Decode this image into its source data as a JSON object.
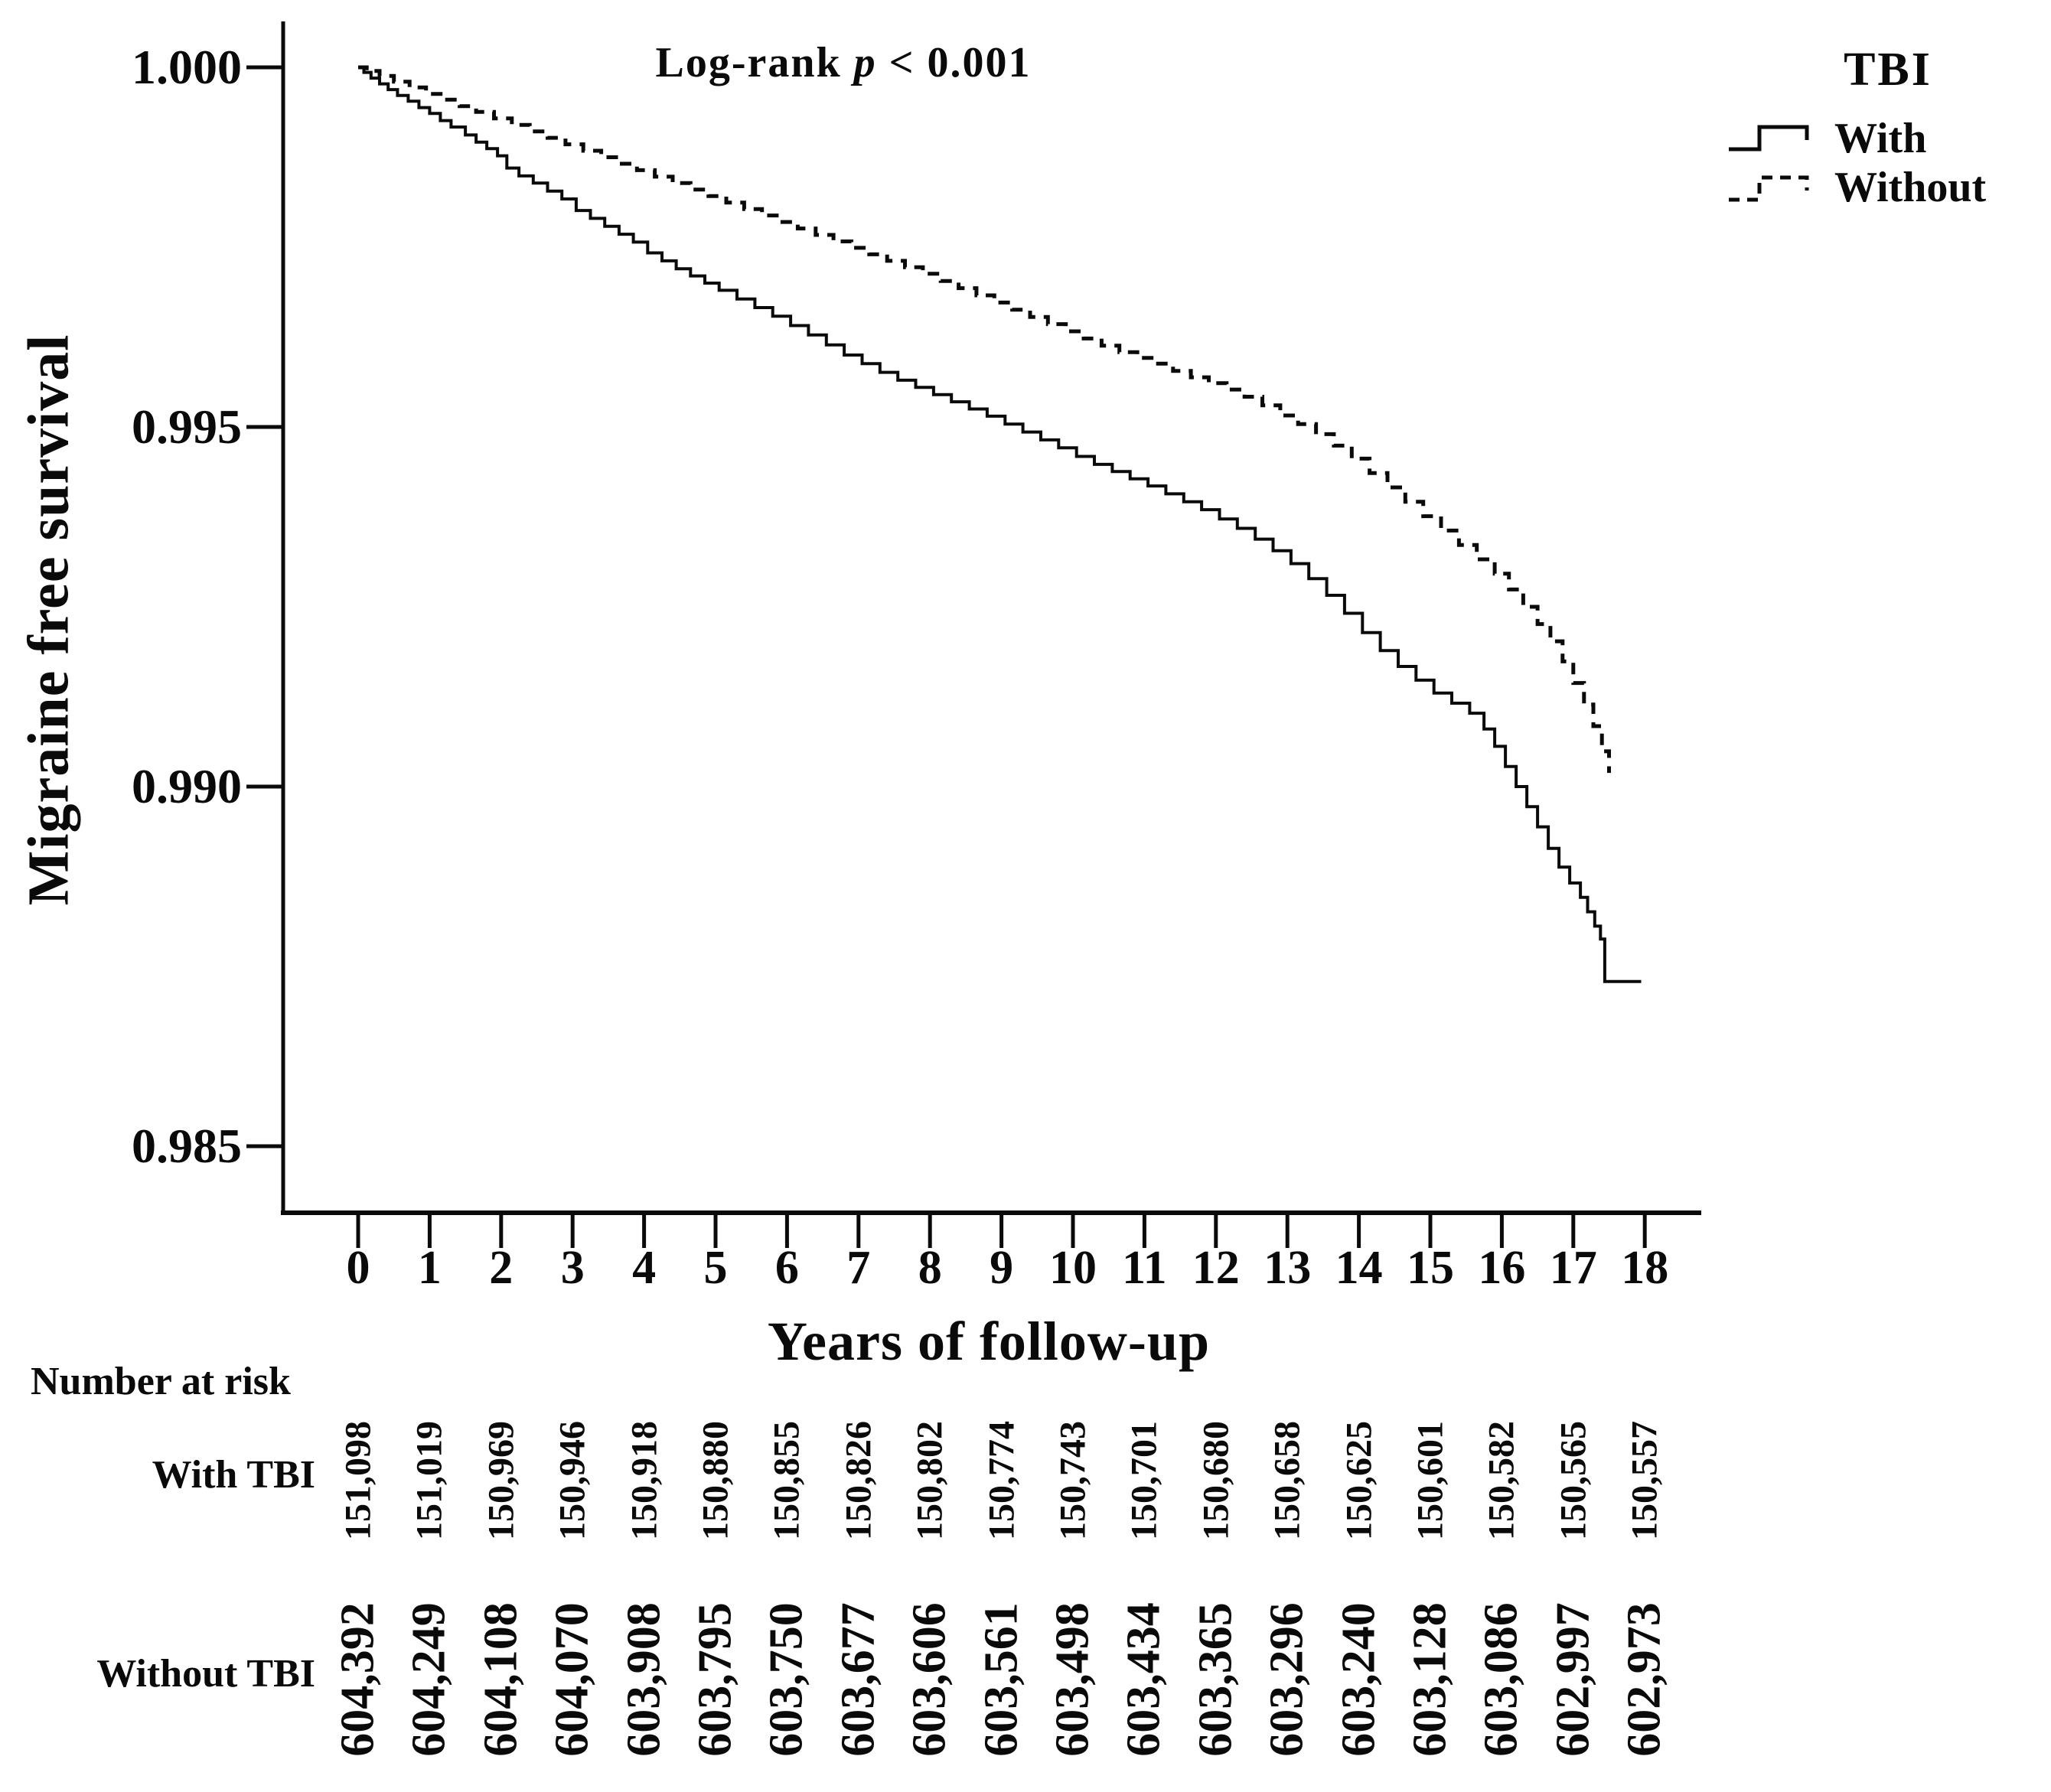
{
  "figure": {
    "annotation": {
      "prefix": "Log-rank ",
      "stat": "p",
      "suffix": " < 0.001"
    },
    "y_axis": {
      "label": "Migraine free survival",
      "tick_labels": [
        "1.000",
        "0.995",
        "0.990",
        "0.985"
      ],
      "tick_values": [
        1.0,
        0.995,
        0.99,
        0.985
      ]
    },
    "x_axis": {
      "label": "Years of follow-up",
      "tick_labels": [
        "0",
        "1",
        "2",
        "3",
        "4",
        "5",
        "6",
        "7",
        "8",
        "9",
        "10",
        "11",
        "12",
        "13",
        "14",
        "15",
        "16",
        "17",
        "18"
      ],
      "tick_values": [
        0,
        1,
        2,
        3,
        4,
        5,
        6,
        7,
        8,
        9,
        10,
        11,
        12,
        13,
        14,
        15,
        16,
        17,
        18
      ]
    },
    "legend": {
      "title": "TBI",
      "items": [
        {
          "label": "With",
          "line_style": "solid"
        },
        {
          "label": "Without",
          "line_style": "dashed"
        }
      ]
    }
  },
  "risk_table": {
    "header": "Number at risk",
    "rows": [
      {
        "label": "With TBI",
        "values": [
          "151,098",
          "151,019",
          "150,969",
          "150,946",
          "150,918",
          "150,880",
          "150,855",
          "150,826",
          "150,802",
          "150,774",
          "150,743",
          "150,701",
          "150,680",
          "150,658",
          "150,625",
          "150,601",
          "150,582",
          "150,565",
          "150,557"
        ]
      },
      {
        "label": "Without TBI",
        "values": [
          "604,392",
          "604,249",
          "604,108",
          "604,070",
          "603,908",
          "603,795",
          "603,750",
          "603,677",
          "603,606",
          "603,561",
          "603,498",
          "603,434",
          "603,365",
          "603,296",
          "603,240",
          "603,128",
          "603,086",
          "602,997",
          "602,973"
        ]
      }
    ]
  },
  "chart_data": {
    "type": "line",
    "subtype": "kaplan-meier-step-curves",
    "title": "Log-rank p < 0.001",
    "xlabel": "Years of follow-up",
    "ylabel": "Migraine free survival",
    "xlim": [
      0,
      18
    ],
    "ylim": [
      0.9838,
      1.0006
    ],
    "x_ticks": [
      0,
      1,
      2,
      3,
      4,
      5,
      6,
      7,
      8,
      9,
      10,
      11,
      12,
      13,
      14,
      15,
      16,
      17,
      18
    ],
    "y_ticks": [
      1.0,
      0.995,
      0.99,
      0.985
    ],
    "grid": false,
    "legend_position": "top-right",
    "legend_title": "TBI",
    "colors": {
      "foreground": "#0a0a0a",
      "background": "#ffffff"
    },
    "series": [
      {
        "name": "With",
        "style": "solid",
        "color": "#0a0a0a",
        "points": [
          [
            0,
            1.0
          ],
          [
            0.08,
            0.99993
          ],
          [
            0.18,
            0.99985
          ],
          [
            0.3,
            0.99977
          ],
          [
            0.42,
            0.99969
          ],
          [
            0.55,
            0.99961
          ],
          [
            0.7,
            0.99953
          ],
          [
            0.85,
            0.99944
          ],
          [
            1.0,
            0.99936
          ],
          [
            1.15,
            0.99926
          ],
          [
            1.3,
            0.99917
          ],
          [
            1.5,
            0.99906
          ],
          [
            1.65,
            0.99896
          ],
          [
            1.8,
            0.99887
          ],
          [
            1.95,
            0.99877
          ],
          [
            2.08,
            0.9986
          ],
          [
            2.25,
            0.99849
          ],
          [
            2.45,
            0.99839
          ],
          [
            2.65,
            0.99828
          ],
          [
            2.85,
            0.99817
          ],
          [
            3.05,
            0.99801
          ],
          [
            3.25,
            0.9979
          ],
          [
            3.45,
            0.99779
          ],
          [
            3.65,
            0.99768
          ],
          [
            3.85,
            0.99757
          ],
          [
            4.05,
            0.99742
          ],
          [
            4.25,
            0.99731
          ],
          [
            4.45,
            0.9972
          ],
          [
            4.65,
            0.9971
          ],
          [
            4.85,
            0.997
          ],
          [
            5.05,
            0.9969
          ],
          [
            5.3,
            0.99678
          ],
          [
            5.55,
            0.99666
          ],
          [
            5.8,
            0.99654
          ],
          [
            6.05,
            0.99641
          ],
          [
            6.3,
            0.99628
          ],
          [
            6.55,
            0.99614
          ],
          [
            6.8,
            0.996
          ],
          [
            7.05,
            0.99588
          ],
          [
            7.3,
            0.99576
          ],
          [
            7.55,
            0.99565
          ],
          [
            7.8,
            0.99555
          ],
          [
            8.05,
            0.99545
          ],
          [
            8.3,
            0.99535
          ],
          [
            8.55,
            0.99525
          ],
          [
            8.8,
            0.99515
          ],
          [
            9.05,
            0.99504
          ],
          [
            9.3,
            0.99493
          ],
          [
            9.55,
            0.99482
          ],
          [
            9.8,
            0.99471
          ],
          [
            10.05,
            0.99459
          ],
          [
            10.3,
            0.99448
          ],
          [
            10.55,
            0.99438
          ],
          [
            10.8,
            0.99428
          ],
          [
            11.05,
            0.99418
          ],
          [
            11.3,
            0.99407
          ],
          [
            11.55,
            0.99396
          ],
          [
            11.8,
            0.99385
          ],
          [
            12.05,
            0.99372
          ],
          [
            12.3,
            0.99359
          ],
          [
            12.55,
            0.99344
          ],
          [
            12.8,
            0.99328
          ],
          [
            13.05,
            0.9931
          ],
          [
            13.3,
            0.99289
          ],
          [
            13.55,
            0.99266
          ],
          [
            13.8,
            0.99241
          ],
          [
            14.05,
            0.99214
          ],
          [
            14.3,
            0.99189
          ],
          [
            14.55,
            0.99167
          ],
          [
            14.8,
            0.99148
          ],
          [
            15.05,
            0.9913
          ],
          [
            15.3,
            0.99116
          ],
          [
            15.55,
            0.99102
          ],
          [
            15.75,
            0.9908
          ],
          [
            15.9,
            0.99056
          ],
          [
            16.05,
            0.99028
          ],
          [
            16.2,
            0.99
          ],
          [
            16.35,
            0.98972
          ],
          [
            16.5,
            0.98944
          ],
          [
            16.65,
            0.98914
          ],
          [
            16.8,
            0.98888
          ],
          [
            16.95,
            0.98866
          ],
          [
            17.1,
            0.98846
          ],
          [
            17.2,
            0.98826
          ],
          [
            17.3,
            0.98806
          ],
          [
            17.38,
            0.98788
          ],
          [
            17.44,
            0.98729
          ],
          [
            17.95,
            0.98729
          ]
        ]
      },
      {
        "name": "Without",
        "style": "dashed",
        "color": "#0a0a0a",
        "points": [
          [
            0,
            1.0
          ],
          [
            0.12,
            0.99995
          ],
          [
            0.3,
            0.99988
          ],
          [
            0.5,
            0.9998
          ],
          [
            0.72,
            0.99972
          ],
          [
            0.95,
            0.99963
          ],
          [
            1.18,
            0.99955
          ],
          [
            1.42,
            0.99946
          ],
          [
            1.65,
            0.99938
          ],
          [
            1.9,
            0.99929
          ],
          [
            2.15,
            0.9992
          ],
          [
            2.4,
            0.99911
          ],
          [
            2.65,
            0.99902
          ],
          [
            2.9,
            0.99893
          ],
          [
            3.15,
            0.99884
          ],
          [
            3.4,
            0.99875
          ],
          [
            3.65,
            0.99866
          ],
          [
            3.9,
            0.99857
          ],
          [
            4.15,
            0.99848
          ],
          [
            4.4,
            0.99839
          ],
          [
            4.65,
            0.9983
          ],
          [
            4.9,
            0.99821
          ],
          [
            5.15,
            0.99812
          ],
          [
            5.4,
            0.99803
          ],
          [
            5.65,
            0.99794
          ],
          [
            5.9,
            0.99785
          ],
          [
            6.15,
            0.99776
          ],
          [
            6.4,
            0.99767
          ],
          [
            6.65,
            0.99758
          ],
          [
            6.9,
            0.99749
          ],
          [
            7.15,
            0.9974
          ],
          [
            7.4,
            0.99731
          ],
          [
            7.65,
            0.99722
          ],
          [
            7.9,
            0.99713
          ],
          [
            8.15,
            0.99703
          ],
          [
            8.4,
            0.99693
          ],
          [
            8.65,
            0.99683
          ],
          [
            8.9,
            0.99673
          ],
          [
            9.15,
            0.99663
          ],
          [
            9.4,
            0.99653
          ],
          [
            9.65,
            0.99643
          ],
          [
            9.9,
            0.99633
          ],
          [
            10.15,
            0.99623
          ],
          [
            10.4,
            0.99613
          ],
          [
            10.65,
            0.99604
          ],
          [
            10.9,
            0.99596
          ],
          [
            11.15,
            0.99588
          ],
          [
            11.4,
            0.99578
          ],
          [
            11.65,
            0.99569
          ],
          [
            11.9,
            0.99561
          ],
          [
            12.15,
            0.99552
          ],
          [
            12.4,
            0.99542
          ],
          [
            12.65,
            0.9953
          ],
          [
            12.9,
            0.99516
          ],
          [
            13.15,
            0.99504
          ],
          [
            13.4,
            0.9949
          ],
          [
            13.65,
            0.99474
          ],
          [
            13.9,
            0.99456
          ],
          [
            14.15,
            0.99436
          ],
          [
            14.4,
            0.99416
          ],
          [
            14.65,
            0.99396
          ],
          [
            14.9,
            0.99376
          ],
          [
            15.15,
            0.99356
          ],
          [
            15.4,
            0.99336
          ],
          [
            15.65,
            0.99316
          ],
          [
            15.9,
            0.99296
          ],
          [
            16.1,
            0.99274
          ],
          [
            16.3,
            0.9925
          ],
          [
            16.5,
            0.99226
          ],
          [
            16.68,
            0.99202
          ],
          [
            16.85,
            0.99174
          ],
          [
            17.0,
            0.99144
          ],
          [
            17.15,
            0.99114
          ],
          [
            17.28,
            0.99084
          ],
          [
            17.4,
            0.99049
          ],
          [
            17.5,
            0.99019
          ]
        ]
      }
    ],
    "number_at_risk": {
      "header": "Number at risk",
      "times": [
        0,
        1,
        2,
        3,
        4,
        5,
        6,
        7,
        8,
        9,
        10,
        11,
        12,
        13,
        14,
        15,
        16,
        17,
        18
      ],
      "groups": [
        {
          "name": "With TBI",
          "counts": [
            151098,
            151019,
            150969,
            150946,
            150918,
            150880,
            150855,
            150826,
            150802,
            150774,
            150743,
            150701,
            150680,
            150658,
            150625,
            150601,
            150582,
            150565,
            150557
          ]
        },
        {
          "name": "Without TBI",
          "counts": [
            604392,
            604249,
            604108,
            604070,
            603908,
            603795,
            603750,
            603677,
            603606,
            603561,
            603498,
            603434,
            603365,
            603296,
            603240,
            603128,
            603086,
            602997,
            602973
          ]
        }
      ]
    }
  }
}
